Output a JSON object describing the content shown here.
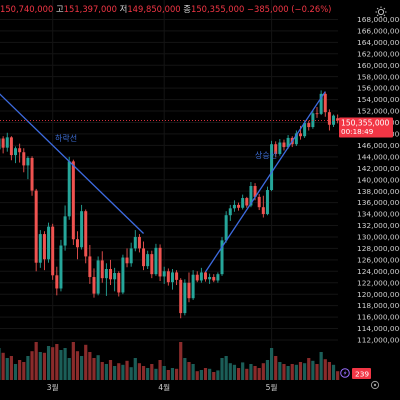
{
  "ohlc": {
    "open": "150,740,000",
    "high_label": "고",
    "high": "151,397,000",
    "low_label": "저",
    "low": "149,850,000",
    "close_label": "종",
    "close": "150,355,000",
    "change": "−385,000 (−0.26%)"
  },
  "price_tag": {
    "price": "150,355,000",
    "countdown": "00:18:49"
  },
  "volume_tag": "239",
  "trendlines": {
    "down_label": "하락선",
    "up_label": "상승선"
  },
  "colors": {
    "up": "#26a69a",
    "down": "#ef5350",
    "trendline": "#3d6be0",
    "label": "#3e6fd8",
    "price_tag": "#f23645",
    "volume_tag": "#f23645"
  },
  "icons": {
    "settings": "sun-gear-icon",
    "bottom_left": "lightning-icon",
    "bottom_right": "gear-icon"
  },
  "chart_data": {
    "type": "candlestick",
    "y_axis": {
      "ticks": [
        168000000,
        166000000,
        164000000,
        162000000,
        160000000,
        158000000,
        156000000,
        154000000,
        152000000,
        150000000,
        148000000,
        146000000,
        144000000,
        142000000,
        140000000,
        138000000,
        136000000,
        134000000,
        132000000,
        130000000,
        128000000,
        126000000,
        124000000,
        122000000,
        120000000,
        118000000,
        116000000,
        114000000,
        112000000
      ],
      "tick_labels": [
        "168,000,000",
        "166,000,000",
        "164,000,000",
        "162,000,000",
        "160,000,000",
        "158,000,000",
        "156,000,000",
        "154,000,000",
        "152,000,000",
        "150,000,000",
        "148,000,000",
        "146,000,000",
        "144,000,000",
        "142,000,000",
        "140,000,000",
        "138,000,000",
        "136,000,000",
        "134,000,000",
        "132,000,000",
        "130,000,000",
        "128,000,000",
        "126,000,000",
        "124,000,000",
        "122,000,000",
        "120,000,000",
        "118,000,000",
        "116,000,000",
        "114,000,000",
        "112,000,000"
      ],
      "range": [
        110600000,
        169300000
      ]
    },
    "x_axis": {
      "month_labels": [
        "3월",
        "4월",
        "5월"
      ],
      "month_start_index": [
        13,
        40,
        66
      ]
    },
    "last_price": 150355000,
    "candles": [
      [
        145.3,
        148.6,
        145.0,
        147.2
      ],
      [
        147.2,
        147.6,
        144.6,
        145.6
      ],
      [
        145.6,
        148.2,
        144.9,
        147.4
      ],
      [
        147.4,
        147.6,
        143.4,
        144.3
      ],
      [
        144.3,
        145.8,
        142.9,
        145.5
      ],
      [
        145.5,
        146.3,
        143.0,
        144.8
      ],
      [
        144.8,
        145.5,
        141.3,
        142.5
      ],
      [
        142.5,
        144.1,
        140.1,
        143.8
      ],
      [
        143.8,
        144.1,
        137.2,
        138.1
      ],
      [
        138.1,
        138.4,
        124.0,
        125.5
      ],
      [
        125.5,
        131.2,
        124.6,
        130.5
      ],
      [
        130.5,
        131.0,
        124.2,
        126.1
      ],
      [
        126.1,
        132.5,
        125.5,
        131.8
      ],
      [
        131.8,
        132.3,
        122.5,
        123.3
      ],
      [
        123.3,
        124.8,
        119.8,
        121.0
      ],
      [
        121.0,
        129.5,
        120.5,
        128.5
      ],
      [
        128.5,
        135.5,
        127.6,
        133.6
      ],
      [
        133.6,
        144.0,
        133.0,
        143.2
      ],
      [
        143.2,
        143.5,
        128.6,
        129.6
      ],
      [
        129.6,
        131.0,
        126.1,
        128.2
      ],
      [
        128.2,
        135.6,
        127.8,
        134.5
      ],
      [
        134.5,
        134.8,
        125.4,
        126.6
      ],
      [
        126.6,
        128.6,
        121.8,
        123.0
      ],
      [
        123.0,
        124.5,
        119.4,
        120.1
      ],
      [
        120.1,
        126.6,
        119.8,
        125.9
      ],
      [
        125.9,
        127.5,
        122.0,
        122.8
      ],
      [
        122.8,
        125.4,
        119.7,
        124.4
      ],
      [
        124.4,
        126.0,
        121.6,
        122.6
      ],
      [
        122.6,
        124.6,
        120.5,
        123.7
      ],
      [
        123.7,
        124.0,
        119.6,
        120.3
      ],
      [
        120.3,
        126.9,
        120.0,
        126.4
      ],
      [
        126.4,
        128.0,
        124.7,
        125.4
      ],
      [
        125.4,
        129.0,
        124.8,
        128.0
      ],
      [
        128.0,
        131.2,
        127.5,
        130.0
      ],
      [
        130.0,
        130.5,
        127.3,
        128.0
      ],
      [
        128.0,
        129.2,
        124.2,
        124.9
      ],
      [
        124.9,
        127.6,
        124.4,
        127.0
      ],
      [
        127.0,
        127.6,
        122.8,
        123.5
      ],
      [
        123.5,
        128.8,
        123.2,
        128.1
      ],
      [
        128.1,
        128.7,
        122.3,
        123.1
      ],
      [
        123.1,
        124.8,
        121.8,
        124.0
      ],
      [
        124.0,
        124.5,
        121.5,
        122.1
      ],
      [
        122.1,
        124.4,
        120.8,
        123.8
      ],
      [
        123.8,
        124.2,
        121.6,
        122.5
      ],
      [
        122.5,
        122.8,
        115.8,
        116.7
      ],
      [
        116.7,
        122.6,
        116.3,
        122.0
      ],
      [
        122.0,
        123.8,
        118.6,
        119.3
      ],
      [
        119.3,
        124.2,
        119.0,
        123.4
      ],
      [
        123.4,
        124.0,
        122.1,
        122.4
      ],
      [
        122.4,
        124.6,
        122.0,
        123.8
      ],
      [
        123.8,
        124.0,
        122.2,
        122.6
      ],
      [
        122.6,
        123.6,
        121.8,
        123.0
      ],
      [
        123.0,
        123.5,
        122.1,
        122.4
      ],
      [
        122.4,
        123.8,
        122.0,
        123.5
      ],
      [
        123.5,
        130.0,
        123.2,
        129.4
      ],
      [
        129.4,
        134.5,
        129.0,
        133.8
      ],
      [
        133.8,
        135.6,
        132.8,
        135.0
      ],
      [
        135.0,
        136.4,
        134.4,
        135.6
      ],
      [
        135.6,
        136.0,
        134.6,
        135.1
      ],
      [
        135.1,
        137.4,
        134.8,
        136.8
      ],
      [
        136.8,
        137.0,
        135.1,
        135.5
      ],
      [
        135.5,
        139.6,
        135.2,
        138.9
      ],
      [
        138.9,
        139.4,
        136.4,
        137.0
      ],
      [
        137.0,
        137.5,
        134.7,
        135.2
      ],
      [
        135.2,
        137.2,
        133.4,
        134.0
      ],
      [
        134.0,
        138.8,
        133.8,
        138.2
      ],
      [
        138.2,
        146.8,
        138.0,
        146.2
      ],
      [
        146.2,
        146.7,
        143.9,
        144.5
      ],
      [
        144.5,
        147.1,
        144.2,
        146.5
      ],
      [
        146.5,
        147.0,
        145.1,
        145.7
      ],
      [
        145.7,
        147.8,
        145.4,
        147.3
      ],
      [
        147.3,
        147.6,
        145.7,
        146.2
      ],
      [
        146.2,
        148.6,
        145.9,
        148.1
      ],
      [
        148.1,
        149.4,
        147.0,
        147.6
      ],
      [
        147.6,
        150.4,
        147.3,
        149.9
      ],
      [
        149.9,
        150.3,
        148.6,
        149.2
      ],
      [
        149.2,
        152.1,
        148.9,
        151.6
      ],
      [
        151.6,
        152.7,
        150.8,
        151.5
      ],
      [
        151.5,
        155.6,
        151.3,
        155.0
      ],
      [
        155.0,
        155.4,
        151.0,
        151.8
      ],
      [
        151.8,
        152.3,
        148.6,
        149.6
      ],
      [
        149.6,
        151.4,
        149.2,
        151.2
      ],
      [
        150.74,
        151.397,
        149.85,
        150.355
      ]
    ],
    "candle_units": "million KRW",
    "volumes": [
      0.8,
      0.68,
      0.55,
      0.6,
      0.4,
      0.5,
      0.45,
      0.6,
      0.72,
      0.95,
      0.7,
      0.68,
      0.85,
      0.82,
      0.9,
      0.75,
      0.8,
      0.55,
      0.95,
      0.72,
      0.6,
      0.88,
      0.7,
      0.55,
      0.62,
      0.45,
      0.4,
      0.5,
      0.35,
      0.42,
      0.38,
      0.48,
      0.32,
      0.55,
      0.42,
      0.35,
      0.3,
      0.4,
      0.28,
      0.5,
      0.35,
      0.25,
      0.3,
      0.28,
      0.95,
      0.55,
      0.45,
      0.4,
      0.22,
      0.25,
      0.3,
      0.28,
      0.2,
      0.24,
      0.55,
      0.6,
      0.42,
      0.38,
      0.3,
      0.44,
      0.28,
      0.4,
      0.35,
      0.3,
      0.42,
      0.5,
      0.8,
      0.6,
      0.45,
      0.4,
      0.35,
      0.4,
      0.38,
      0.45,
      0.42,
      0.55,
      0.48,
      0.4,
      0.7,
      0.52,
      0.45,
      0.38,
      0.22
    ],
    "trendlines": [
      {
        "name": "하락선",
        "from": [
          -2,
          156.5
        ],
        "to": [
          35,
          130.6
        ]
      },
      {
        "name": "상승선",
        "from": [
          50,
          123.9
        ],
        "to": [
          79,
          155.4
        ]
      }
    ]
  }
}
